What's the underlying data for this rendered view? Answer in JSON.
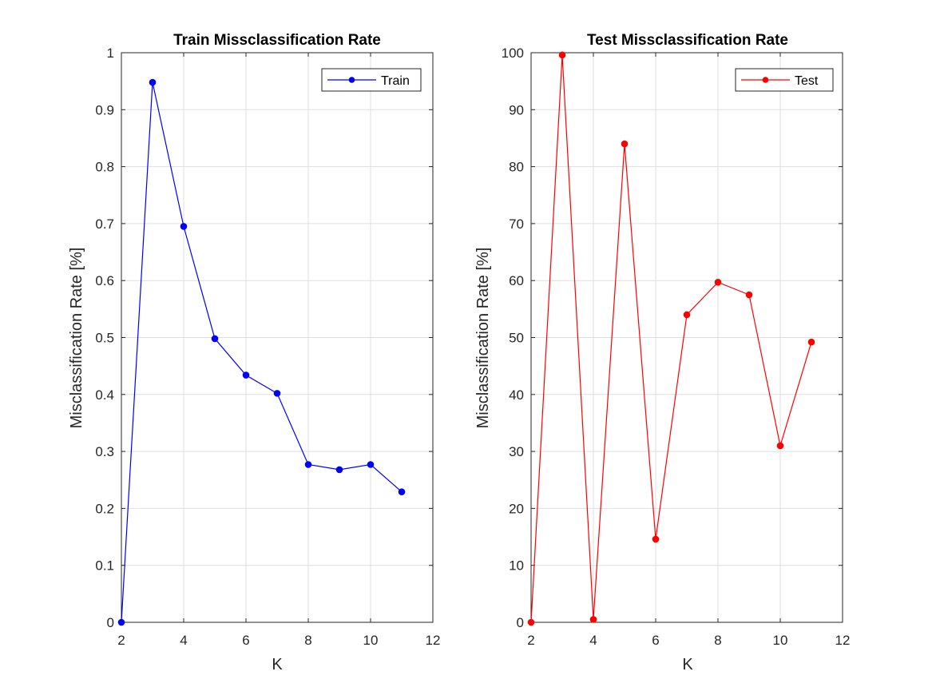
{
  "chart_data": [
    {
      "type": "line",
      "title": "Train Missclassification Rate",
      "xlabel": "K",
      "ylabel": "Misclassification Rate [%]",
      "xlim": [
        2,
        12
      ],
      "ylim": [
        0,
        1
      ],
      "xticks": [
        "2",
        "4",
        "6",
        "8",
        "10",
        "12"
      ],
      "yticks": [
        "0",
        "0.1",
        "0.2",
        "0.3",
        "0.4",
        "0.5",
        "0.6",
        "0.7",
        "0.8",
        "0.9",
        "1"
      ],
      "grid": true,
      "legend": "top-right",
      "color": "#0000ff",
      "series": [
        {
          "name": "Train",
          "x": [
            2,
            3,
            4,
            5,
            6,
            7,
            8,
            9,
            10,
            11
          ],
          "values": [
            0.0,
            0.948,
            0.695,
            0.498,
            0.434,
            0.402,
            0.277,
            0.268,
            0.277,
            0.229
          ]
        }
      ]
    },
    {
      "type": "line",
      "title": "Test Missclassification Rate",
      "xlabel": "K",
      "ylabel": "Misclassification Rate [%]",
      "xlim": [
        2,
        12
      ],
      "ylim": [
        0,
        100
      ],
      "xticks": [
        "2",
        "4",
        "6",
        "8",
        "10",
        "12"
      ],
      "yticks": [
        "0",
        "10",
        "20",
        "30",
        "40",
        "50",
        "60",
        "70",
        "80",
        "90",
        "100"
      ],
      "grid": true,
      "legend": "top-right",
      "color": "#ff0000",
      "series": [
        {
          "name": "Test",
          "x": [
            2,
            3,
            4,
            5,
            6,
            7,
            8,
            9,
            10,
            11
          ],
          "values": [
            0.0,
            99.6,
            0.5,
            84.0,
            14.6,
            54.0,
            59.7,
            57.5,
            31.0,
            49.2
          ]
        }
      ]
    }
  ]
}
